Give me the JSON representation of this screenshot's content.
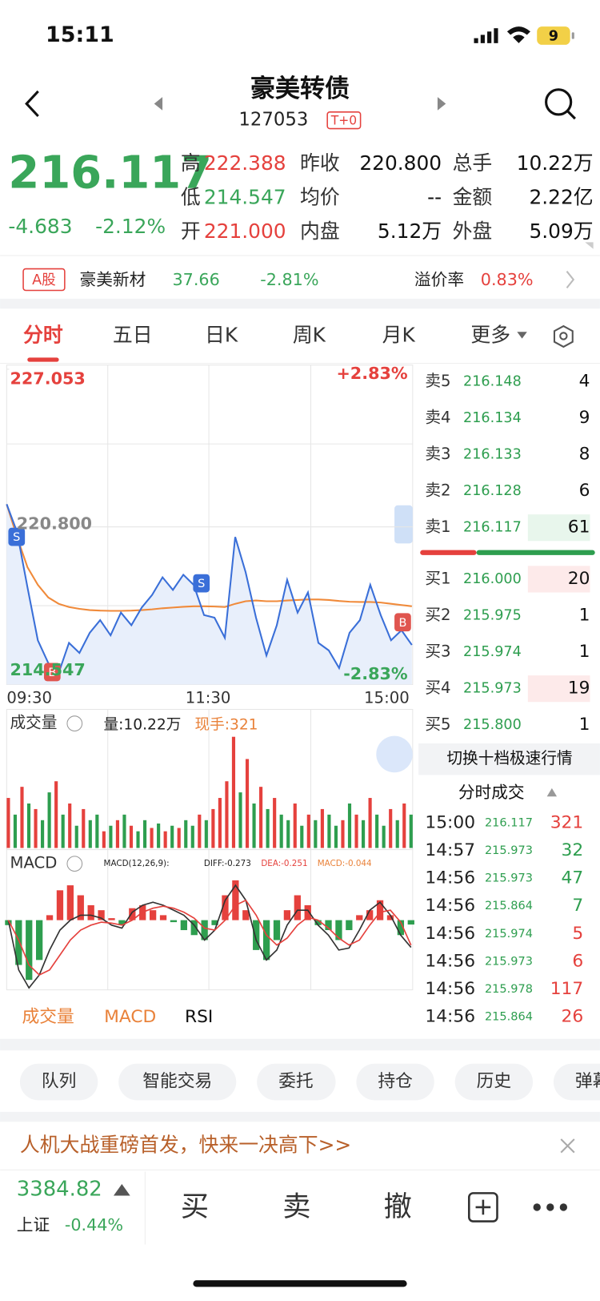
{
  "status": {
    "time": "15:11",
    "battery": "9"
  },
  "header": {
    "title": "豪美转债",
    "code": "127053",
    "badge": "T+0"
  },
  "quote": {
    "price": "216.117",
    "change": "-4.683",
    "pct": "-2.12%",
    "stats": [
      {
        "label": "高",
        "value": "222.388"
      },
      {
        "label": "昨收",
        "value": "220.800"
      },
      {
        "label": "总手",
        "value": "10.22万"
      },
      {
        "label": "低",
        "value": "214.547"
      },
      {
        "label": "均价",
        "value": "--"
      },
      {
        "label": "金额",
        "value": "2.22亿"
      },
      {
        "label": "开",
        "value": "221.000"
      },
      {
        "label": "内盘",
        "value": "5.12万"
      },
      {
        "label": "外盘",
        "value": "5.09万"
      }
    ]
  },
  "stock": {
    "badge": "A股",
    "name": "豪美新材",
    "price": "37.66",
    "pct": "-2.81%",
    "premium_label": "溢价率",
    "premium": "0.83%"
  },
  "tabs": [
    "分时",
    "五日",
    "日K",
    "周K",
    "月K",
    "更多"
  ],
  "intraday": {
    "type": "line",
    "ylim": [
      214.547,
      227.053
    ],
    "yticks": [
      227.053,
      {
        "value": 220.8,
        "label": "220.800"
      },
      214.547
    ],
    "pct_top": "+2.83%",
    "pct_bottom": "-2.83%",
    "xlabels": [
      "09:30",
      "11:30",
      "15:00"
    ],
    "price": [
      221.7,
      220.6,
      218.4,
      216.3,
      215.4,
      215.0,
      216.2,
      215.8,
      216.6,
      217.1,
      216.5,
      217.4,
      216.9,
      217.6,
      218.1,
      218.8,
      218.3,
      218.9,
      218.5,
      217.3,
      217.2,
      216.4,
      220.4,
      219.0,
      217.2,
      215.7,
      216.9,
      218.7,
      217.4,
      218.2,
      216.2,
      215.9,
      215.2,
      216.6,
      217.1,
      218.5,
      217.3,
      216.3,
      216.7,
      216.117
    ],
    "average": [
      221.7,
      220.4,
      219.2,
      218.5,
      218.0,
      217.75,
      217.62,
      217.55,
      217.5,
      217.48,
      217.47,
      217.47,
      217.48,
      217.5,
      217.53,
      217.57,
      217.6,
      217.63,
      217.65,
      217.65,
      217.64,
      217.62,
      217.75,
      217.85,
      217.88,
      217.85,
      217.85,
      217.88,
      217.9,
      217.92,
      217.92,
      217.9,
      217.86,
      217.83,
      217.82,
      217.82,
      217.8,
      217.75,
      217.7,
      217.65
    ],
    "price_color": "#3a6fd8",
    "average_color": "#f08a3a",
    "area_color": "#e8effb"
  },
  "volume": {
    "title": "成交量",
    "total": "量:10.22万",
    "last": "现手:321",
    "values": [
      45,
      30,
      55,
      40,
      35,
      25,
      50,
      60,
      30,
      40,
      20,
      35,
      25,
      30,
      15,
      20,
      25,
      30,
      20,
      15,
      25,
      18,
      22,
      15,
      20,
      18,
      25,
      20,
      30,
      25,
      35,
      45,
      60,
      100,
      50,
      80,
      40,
      55,
      35,
      45,
      30,
      25,
      40,
      20,
      30,
      25,
      35,
      30,
      20,
      25,
      40,
      30,
      25,
      45,
      30,
      20,
      35,
      25,
      40,
      30
    ],
    "rising": [
      true,
      false,
      true,
      false,
      true,
      false,
      false,
      true,
      false,
      true,
      false,
      true,
      false,
      false,
      true,
      false,
      true,
      false,
      true,
      false,
      false,
      true,
      false,
      true,
      false,
      true,
      false,
      false,
      true,
      false,
      true,
      true,
      true,
      true,
      false,
      true,
      false,
      true,
      false,
      true,
      false,
      false,
      true,
      false,
      true,
      false,
      true,
      false,
      false,
      true,
      false,
      true,
      false,
      true,
      false,
      false,
      true,
      false,
      true,
      false
    ],
    "up_color": "#e5413d",
    "down_color": "#2e9e4f"
  },
  "macd": {
    "title": "MACD",
    "params": "MACD(12,26,9):",
    "diff_label": "DIFF:-0.273",
    "dea_label": "DEA:-0.251",
    "macd_label": "MACD:-0.044",
    "ylim": [
      -0.7,
      0.7
    ],
    "hist": [
      -0.05,
      -0.45,
      -0.6,
      -0.4,
      0.05,
      0.3,
      0.35,
      0.25,
      0.15,
      0.1,
      0.02,
      -0.05,
      0.12,
      0.15,
      0.1,
      0.05,
      -0.02,
      -0.1,
      -0.15,
      -0.2,
      -0.05,
      0.25,
      0.4,
      0.1,
      -0.3,
      -0.4,
      -0.2,
      0.1,
      0.25,
      0.15,
      -0.05,
      -0.1,
      -0.2,
      -0.1,
      0.05,
      0.1,
      0.2,
      0.05,
      -0.15,
      -0.044
    ],
    "diff": [
      0.0,
      -0.5,
      -0.68,
      -0.55,
      -0.3,
      -0.1,
      0.0,
      0.05,
      0.05,
      0.02,
      -0.05,
      -0.08,
      0.08,
      0.15,
      0.18,
      0.15,
      0.1,
      0.05,
      -0.05,
      -0.2,
      -0.1,
      0.2,
      0.35,
      0.2,
      -0.2,
      -0.4,
      -0.3,
      -0.05,
      0.1,
      0.1,
      -0.05,
      -0.15,
      -0.3,
      -0.28,
      -0.1,
      0.1,
      0.18,
      0.05,
      -0.15,
      -0.273
    ],
    "dea": [
      0.0,
      -0.2,
      -0.45,
      -0.55,
      -0.5,
      -0.35,
      -0.2,
      -0.1,
      -0.05,
      -0.02,
      -0.03,
      -0.05,
      0.0,
      0.08,
      0.12,
      0.14,
      0.12,
      0.08,
      0.02,
      -0.08,
      -0.1,
      0.0,
      0.15,
      0.2,
      0.05,
      -0.15,
      -0.25,
      -0.18,
      -0.05,
      0.03,
      0.0,
      -0.08,
      -0.18,
      -0.25,
      -0.2,
      -0.05,
      0.08,
      0.1,
      -0.02,
      -0.251
    ],
    "diff_color": "#333333",
    "dea_color": "#e5413d"
  },
  "indicator_tabs": [
    "成交量",
    "MACD",
    "RSI"
  ],
  "orderbook": {
    "sells": [
      {
        "label": "卖5",
        "price": "216.148",
        "volume": 4
      },
      {
        "label": "卖4",
        "price": "216.134",
        "volume": 9
      },
      {
        "label": "卖3",
        "price": "216.133",
        "volume": 8
      },
      {
        "label": "卖2",
        "price": "216.128",
        "volume": 6
      },
      {
        "label": "卖1",
        "price": "216.117",
        "volume": 61
      }
    ],
    "buys": [
      {
        "label": "买1",
        "price": "216.000",
        "volume": 20
      },
      {
        "label": "买2",
        "price": "215.975",
        "volume": 1
      },
      {
        "label": "买3",
        "price": "215.974",
        "volume": 1
      },
      {
        "label": "买4",
        "price": "215.973",
        "volume": 19
      },
      {
        "label": "买5",
        "price": "215.800",
        "volume": 1
      }
    ],
    "switch": "切换十档极速行情"
  },
  "trades": {
    "title": "分时成交",
    "rows": [
      {
        "time": "15:00",
        "price": "216.117",
        "volume": 321,
        "color": "#e5413d"
      },
      {
        "time": "14:57",
        "price": "215.973",
        "volume": 32,
        "color": "#2e9e4f"
      },
      {
        "time": "14:56",
        "price": "215.973",
        "volume": 47,
        "color": "#2e9e4f"
      },
      {
        "time": "14:56",
        "price": "215.864",
        "volume": 7,
        "color": "#2e9e4f"
      },
      {
        "time": "14:56",
        "price": "215.974",
        "volume": 5,
        "color": "#e5413d"
      },
      {
        "time": "14:56",
        "price": "215.973",
        "volume": 6,
        "color": "#e5413d"
      },
      {
        "time": "14:56",
        "price": "215.978",
        "volume": 117,
        "color": "#e5413d"
      },
      {
        "time": "14:56",
        "price": "215.864",
        "volume": 26,
        "color": "#e5413d"
      }
    ]
  },
  "actions": [
    "队列",
    "智能交易",
    "委托",
    "持仓",
    "历史",
    "弹幕"
  ],
  "banner": "人机大战重磅首发，快来一决高下>>",
  "footer": {
    "index_value": "3384.82",
    "index_name": "上证",
    "index_pct": "-0.44%",
    "buttons": [
      "买",
      "卖",
      "撤"
    ]
  }
}
